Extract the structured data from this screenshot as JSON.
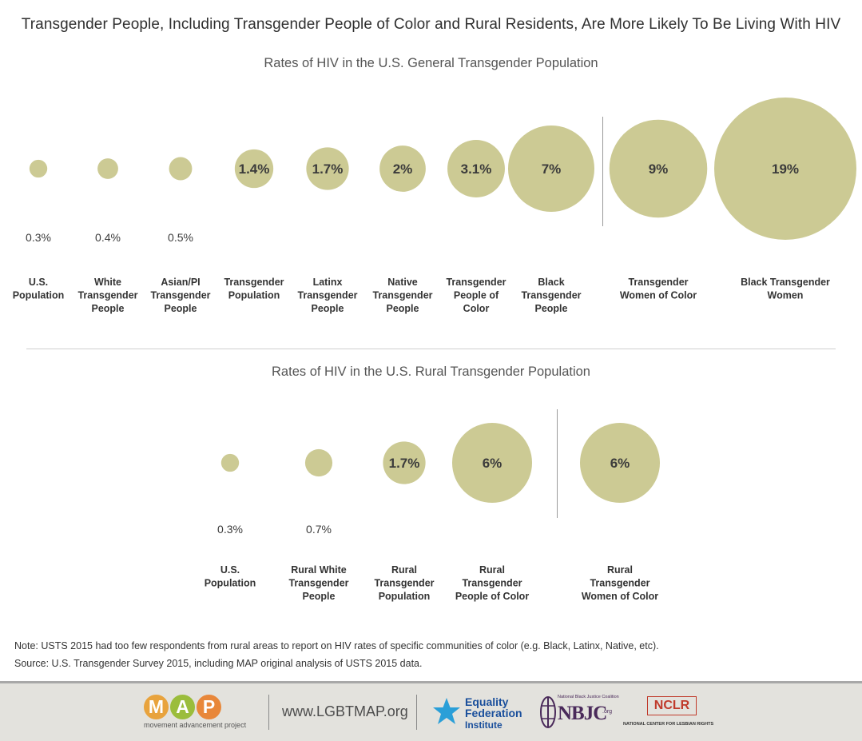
{
  "title": "Transgender People, Including Transgender People of Color and Rural Residents, Are More Likely To Be Living With HIV",
  "colors": {
    "bubble": "#ccca94",
    "divider": "#9a9a9a"
  },
  "chart_data": [
    {
      "type": "bubble",
      "title": "Rates of HIV in the U.S. General Transgender Population",
      "unit": "%",
      "categories": [
        [
          "U.S.",
          "Population"
        ],
        [
          "White",
          "Transgender",
          "People"
        ],
        [
          "Asian/PI",
          "Transgender",
          "People"
        ],
        [
          "Transgender",
          "Population"
        ],
        [
          "Latinx",
          "Transgender",
          "People"
        ],
        [
          "Native",
          "Transgender",
          "People"
        ],
        [
          "Transgender",
          "People of",
          "Color"
        ],
        [
          "Black",
          "Transgender",
          "People"
        ],
        [
          "Transgender",
          "Women of Color"
        ],
        [
          "Black Transgender",
          "Women"
        ]
      ],
      "values": [
        0.3,
        0.4,
        0.5,
        1.4,
        1.7,
        2,
        3.1,
        7,
        9,
        19
      ],
      "value_labels": [
        "0.3%",
        "0.4%",
        "0.5%",
        "1.4%",
        "1.7%",
        "2%",
        "3.1%",
        "7%",
        "9%",
        "19%"
      ],
      "divider_after_index": 7
    },
    {
      "type": "bubble",
      "title": "Rates of HIV in the U.S. Rural Transgender Population",
      "unit": "%",
      "categories": [
        [
          "U.S.",
          "Population"
        ],
        [
          "Rural White",
          "Transgender",
          "People"
        ],
        [
          "Rural",
          "Transgender",
          "Population"
        ],
        [
          "Rural",
          "Transgender",
          "People of Color"
        ],
        [
          "Rural",
          "Transgender",
          "Women of Color"
        ]
      ],
      "values": [
        0.3,
        0.7,
        1.7,
        6,
        6
      ],
      "value_labels": [
        "0.3%",
        "0.7%",
        "1.7%",
        "6%",
        "6%"
      ],
      "divider_after_index": 3
    }
  ],
  "notes": {
    "note": "Note: USTS 2015 had too few respondents from rural areas to report on HIV rates of specific communities of color (e.g. Black, Latinx, Native, etc).",
    "source": "Source: U.S. Transgender Survey 2015, including MAP original analysis of USTS 2015 data."
  },
  "footer": {
    "map_letters": [
      "M",
      "A",
      "P"
    ],
    "map_colors": [
      "#e8a33d",
      "#9bbd3c",
      "#e8873a"
    ],
    "map_tagline": "movement advancement project",
    "url": "www.LGBTMAP.org",
    "efi_line1": "Equality",
    "efi_line2": "Federation",
    "efi_line3": "Institute",
    "nbjc_small": "National Black Justice Coalition",
    "nbjc": "NBJC",
    "nbjc_org": ".org",
    "nclr": "NCLR",
    "nclr_sub": "NATIONAL CENTER FOR LESBIAN RIGHTS"
  }
}
